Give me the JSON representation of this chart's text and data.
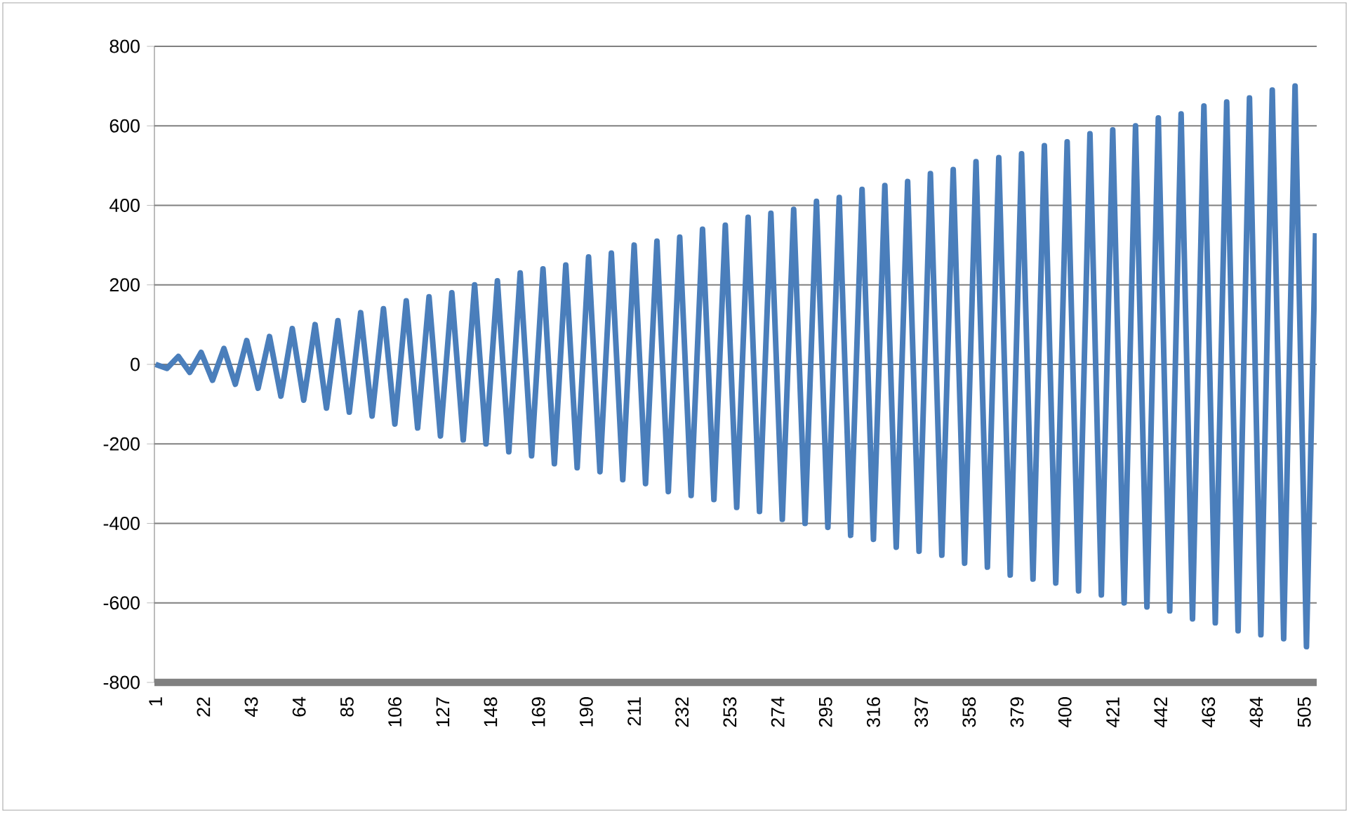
{
  "chart_data": {
    "type": "line",
    "color": "#4a7ebb",
    "grid": "y",
    "marker": "none",
    "line_style": "solid",
    "x": [
      1,
      6,
      11,
      16,
      21,
      26,
      31,
      36,
      41,
      46,
      51,
      56,
      61,
      66,
      71,
      76,
      81,
      86,
      91,
      96,
      101,
      106,
      111,
      116,
      121,
      126,
      131,
      136,
      141,
      146,
      151,
      156,
      161,
      166,
      171,
      176,
      181,
      186,
      191,
      196,
      201,
      206,
      211,
      216,
      221,
      226,
      231,
      236,
      241,
      246,
      251,
      256,
      261,
      266,
      271,
      276,
      281,
      286,
      291,
      296,
      301,
      306,
      311,
      316,
      321,
      326,
      331,
      336,
      341,
      346,
      351,
      356,
      361,
      366,
      371,
      376,
      381,
      386,
      391,
      396,
      401,
      406,
      411,
      416,
      421,
      426,
      431,
      436,
      441,
      446,
      451,
      456,
      461,
      466,
      471,
      476,
      481,
      486,
      491,
      496,
      501,
      506,
      510
    ],
    "values": [
      0,
      -10,
      20,
      -20,
      30,
      -40,
      40,
      -50,
      60,
      -60,
      70,
      -80,
      90,
      -90,
      100,
      -110,
      110,
      -120,
      130,
      -130,
      140,
      -150,
      160,
      -160,
      170,
      -180,
      180,
      -190,
      200,
      -200,
      210,
      -220,
      230,
      -230,
      240,
      -250,
      250,
      -260,
      270,
      -270,
      280,
      -290,
      300,
      -300,
      310,
      -320,
      320,
      -330,
      340,
      -340,
      350,
      -360,
      370,
      -370,
      380,
      -390,
      390,
      -400,
      410,
      -410,
      420,
      -430,
      440,
      -440,
      450,
      -460,
      460,
      -470,
      480,
      -480,
      490,
      -500,
      510,
      -510,
      520,
      -530,
      530,
      -540,
      550,
      -550,
      560,
      -570,
      580,
      -580,
      590,
      -600,
      600,
      -610,
      620,
      -620,
      630,
      -640,
      650,
      -650,
      660,
      -670,
      670,
      -680,
      690,
      -690,
      700,
      -710,
      330
    ],
    "xlim": [
      0.5,
      510.5
    ],
    "ylim": [
      -800,
      800
    ],
    "xticks": [
      1,
      22,
      43,
      64,
      85,
      106,
      127,
      148,
      169,
      190,
      211,
      232,
      253,
      274,
      295,
      316,
      337,
      358,
      379,
      400,
      421,
      442,
      463,
      484,
      505
    ],
    "yticks": [
      -800,
      -600,
      -400,
      -200,
      0,
      200,
      400,
      600,
      800
    ]
  }
}
